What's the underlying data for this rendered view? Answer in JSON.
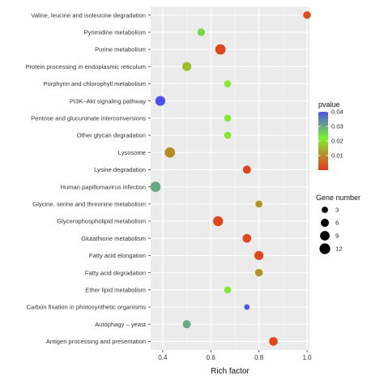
{
  "chart_data": {
    "type": "scatter",
    "xlabel": "Rich factor",
    "ylabel": "",
    "xlim": [
      0.35,
      1.01
    ],
    "xticks": [
      0.4,
      0.6,
      0.8,
      1.0
    ],
    "xtick_labels": [
      "0.4",
      "0.6",
      "0.8",
      "1.0"
    ],
    "grid": true,
    "legend_position": "right",
    "colorbar": {
      "title": "pvalue",
      "range": [
        0.0,
        0.04
      ],
      "ticks": [
        0.04,
        0.03,
        0.02,
        0.01
      ],
      "tick_labels": [
        "0.04",
        "0.03",
        "0.02",
        "0.01"
      ],
      "low_color": "#e8361c",
      "mid_color": "#7ef031",
      "high_color": "#4a53e8"
    },
    "size_legend": {
      "title": "Gene  number",
      "values": [
        3,
        6,
        9,
        12
      ],
      "labels": [
        "3",
        "6",
        "9",
        "12"
      ]
    },
    "categories": [
      "Valine, leucine and isoleucine degradation",
      "Pyrimidine metabolism",
      "Purine metabolism",
      "Protein processing in endoplasmic reticulum",
      "Porphyrin and chlorophyll metabolism",
      "PI3K–Akt signaling pathway",
      "Pentose and glucuronate interconversions",
      "Other glycan degradation",
      "Lysosome",
      "Lysine degradation",
      "Human papillomavirus infection",
      "Glycine, serine and threonine metabolism",
      "Glycerophospholipid metabolism",
      "Glutathione metabolism",
      "Fatty acid elongation",
      "Fatty acid degradation",
      "Ether lipid metabolism",
      "Carbon fixation in photosynthetic organisms",
      "Autophagy – yeast",
      "Antigen processing and presentation"
    ],
    "points": [
      {
        "rich_factor": 1.0,
        "pvalue": 0.003,
        "gene_number": 5
      },
      {
        "rich_factor": 0.56,
        "pvalue": 0.025,
        "gene_number": 5
      },
      {
        "rich_factor": 0.64,
        "pvalue": 0.002,
        "gene_number": 11
      },
      {
        "rich_factor": 0.5,
        "pvalue": 0.016,
        "gene_number": 8
      },
      {
        "rich_factor": 0.67,
        "pvalue": 0.021,
        "gene_number": 4
      },
      {
        "rich_factor": 0.39,
        "pvalue": 0.04,
        "gene_number": 10
      },
      {
        "rich_factor": 0.67,
        "pvalue": 0.021,
        "gene_number": 4
      },
      {
        "rich_factor": 0.67,
        "pvalue": 0.021,
        "gene_number": 4
      },
      {
        "rich_factor": 0.43,
        "pvalue": 0.01,
        "gene_number": 11
      },
      {
        "rich_factor": 0.75,
        "pvalue": 0.002,
        "gene_number": 6
      },
      {
        "rich_factor": 0.37,
        "pvalue": 0.03,
        "gene_number": 11
      },
      {
        "rich_factor": 0.8,
        "pvalue": 0.011,
        "gene_number": 4
      },
      {
        "rich_factor": 0.63,
        "pvalue": 0.002,
        "gene_number": 10
      },
      {
        "rich_factor": 0.75,
        "pvalue": 0.002,
        "gene_number": 7
      },
      {
        "rich_factor": 0.8,
        "pvalue": 0.002,
        "gene_number": 8
      },
      {
        "rich_factor": 0.8,
        "pvalue": 0.011,
        "gene_number": 5
      },
      {
        "rich_factor": 0.67,
        "pvalue": 0.021,
        "gene_number": 4
      },
      {
        "rich_factor": 0.75,
        "pvalue": 0.04,
        "gene_number": 2
      },
      {
        "rich_factor": 0.5,
        "pvalue": 0.03,
        "gene_number": 6
      },
      {
        "rich_factor": 0.86,
        "pvalue": 0.002,
        "gene_number": 7
      }
    ]
  }
}
